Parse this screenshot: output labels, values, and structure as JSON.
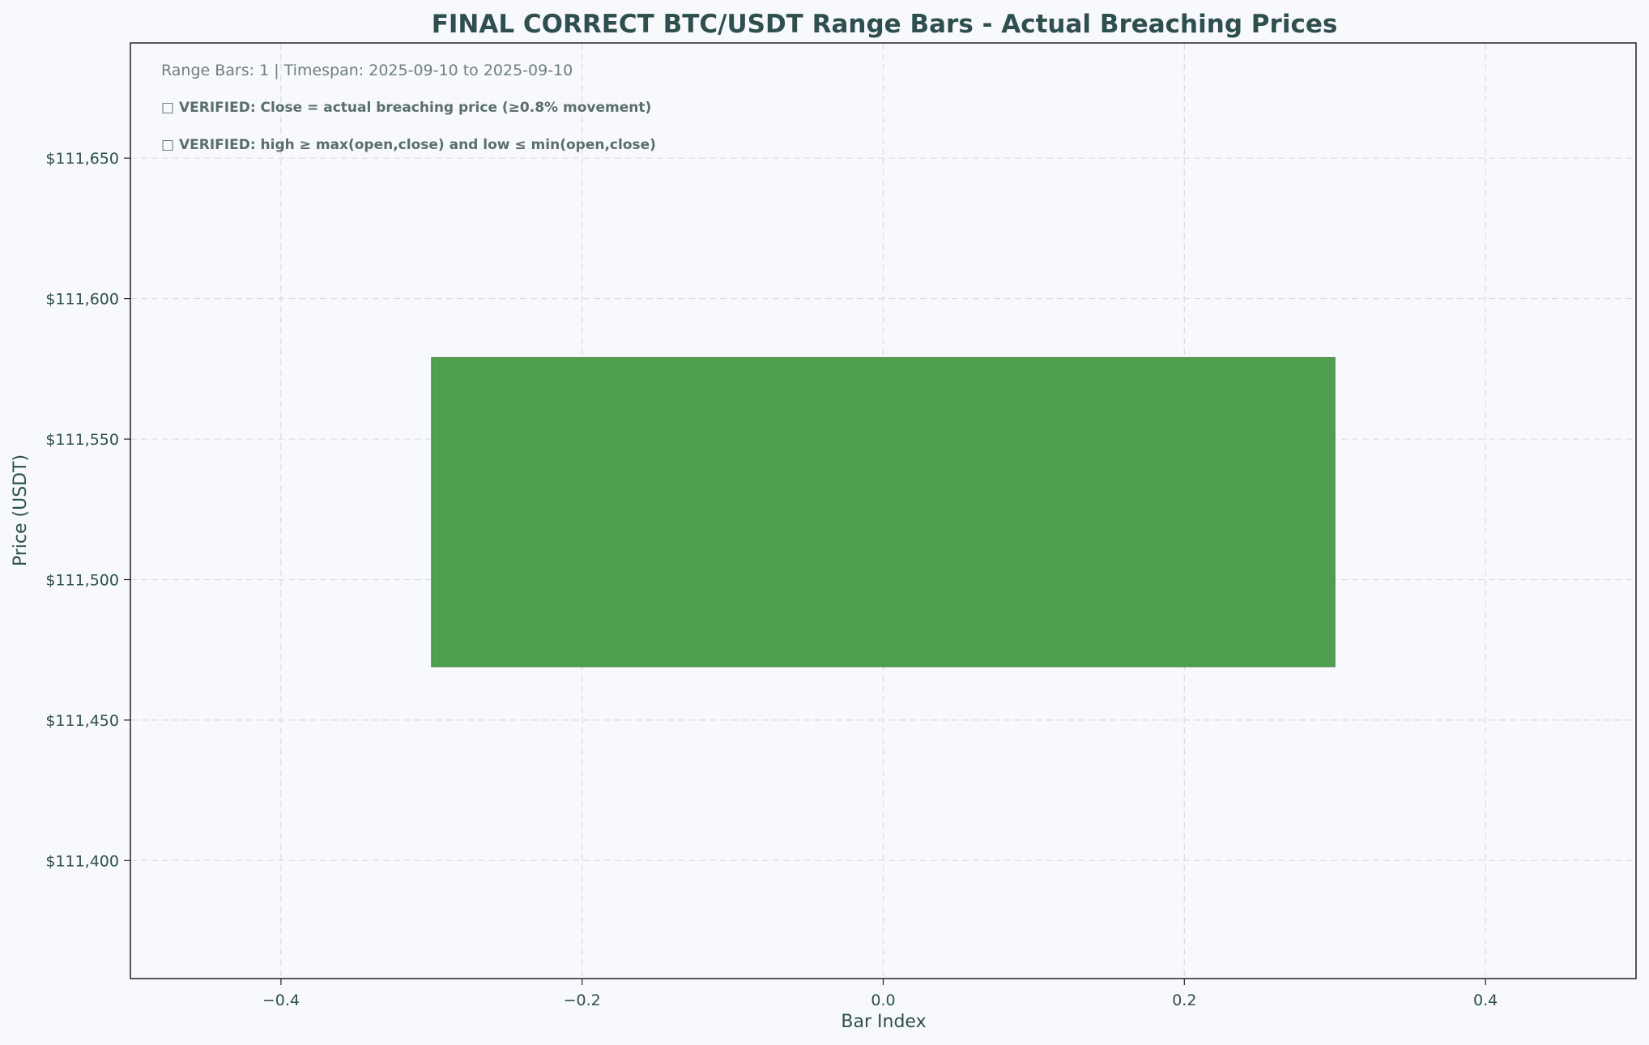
{
  "chart_data": {
    "type": "bar",
    "title": "FINAL CORRECT BTC/USDT Range Bars - Actual Breaching Prices",
    "xlabel": "Bar Index",
    "ylabel": "Price (USDT)",
    "xlim": [
      -0.5,
      0.5
    ],
    "ylim": [
      111358,
      111691
    ],
    "x_ticks": [
      -0.4,
      -0.2,
      0.0,
      0.2,
      0.4
    ],
    "x_tick_labels": [
      "−0.4",
      "−0.2",
      "0.0",
      "0.2",
      "0.4"
    ],
    "y_ticks": [
      111400,
      111450,
      111500,
      111550,
      111600,
      111650
    ],
    "y_tick_labels": [
      "$111,400",
      "$111,450",
      "$111,500",
      "$111,550",
      "$111,600",
      "$111,650"
    ],
    "grid": true,
    "bars": [
      {
        "index": 0,
        "x_start": -0.3,
        "x_end": 0.3,
        "low": 111469,
        "high": 111579,
        "color": "#4e9f4e"
      }
    ],
    "annotations": [
      "Range Bars: 1 | Timespan: 2025-09-10 to 2025-09-10",
      "□ VERIFIED: Close = actual breaching price (≥0.8% movement)",
      "□ VERIFIED: high ≥ max(open,close) and low ≤ min(open,close)"
    ]
  },
  "colors": {
    "background": "#f7f9fd",
    "title": "#2f4f4f",
    "axis_text": "#2f4f4f",
    "annotation_muted": "#6f7f7f",
    "annotation_bold": "#5a6e6a",
    "grid": "#d9dde3",
    "bar_fill": "#4e9f4e",
    "bar_edge": "#3f7f3f"
  }
}
